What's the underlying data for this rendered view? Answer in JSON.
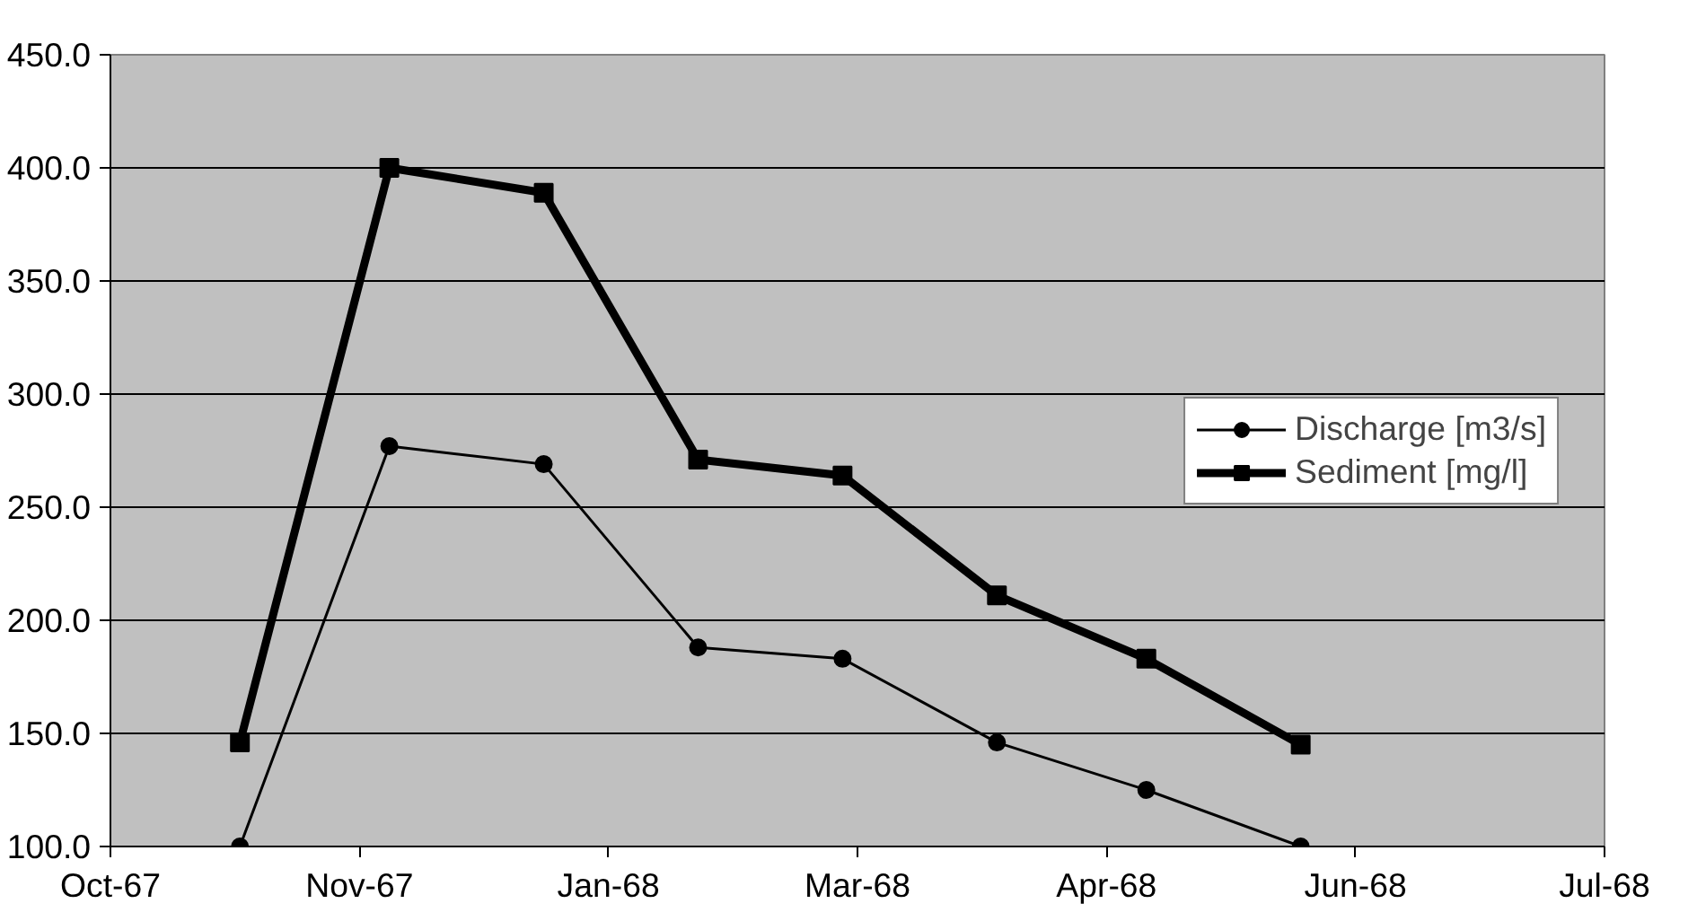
{
  "chart_data": {
    "type": "line",
    "x": [
      "1967-10-31",
      "1967-11-30",
      "1967-12-31",
      "1968-01-31",
      "1968-02-29",
      "1968-03-31",
      "1968-04-30",
      "1968-05-31"
    ],
    "series": [
      {
        "name": "Discharge [m3/s]",
        "color": "#000000",
        "values": [
          100,
          277,
          269,
          188,
          183,
          146,
          125,
          100
        ],
        "marker": "circle"
      },
      {
        "name": "Sediment [mg/l]",
        "color": "#000000",
        "values": [
          146,
          400,
          389,
          271,
          264,
          211,
          183,
          145
        ],
        "marker": "square"
      }
    ],
    "xlim": [
      "1967-10-05",
      "1968-07-31"
    ],
    "xticks": [
      {
        "value": "1967-10-05",
        "label": "Oct-67"
      },
      {
        "value": "1967-11-24",
        "label": "Nov-67"
      },
      {
        "value": "1968-01-13",
        "label": "Jan-68"
      },
      {
        "value": "1968-03-03",
        "label": "Mar-68"
      },
      {
        "value": "1968-04-22",
        "label": "Apr-68"
      },
      {
        "value": "1968-06-11",
        "label": "Jun-68"
      },
      {
        "value": "1968-07-31",
        "label": "Jul-68"
      }
    ],
    "ylim": [
      100,
      450
    ],
    "yticks": [
      {
        "value": 100,
        "label": "100.0"
      },
      {
        "value": 150,
        "label": "150.0"
      },
      {
        "value": 200,
        "label": "200.0"
      },
      {
        "value": 250,
        "label": "250.0"
      },
      {
        "value": 300,
        "label": "300.0"
      },
      {
        "value": 350,
        "label": "350.0"
      },
      {
        "value": 400,
        "label": "400.0"
      },
      {
        "value": 450,
        "label": "450.0"
      }
    ],
    "grid": "y",
    "legend": "right"
  }
}
